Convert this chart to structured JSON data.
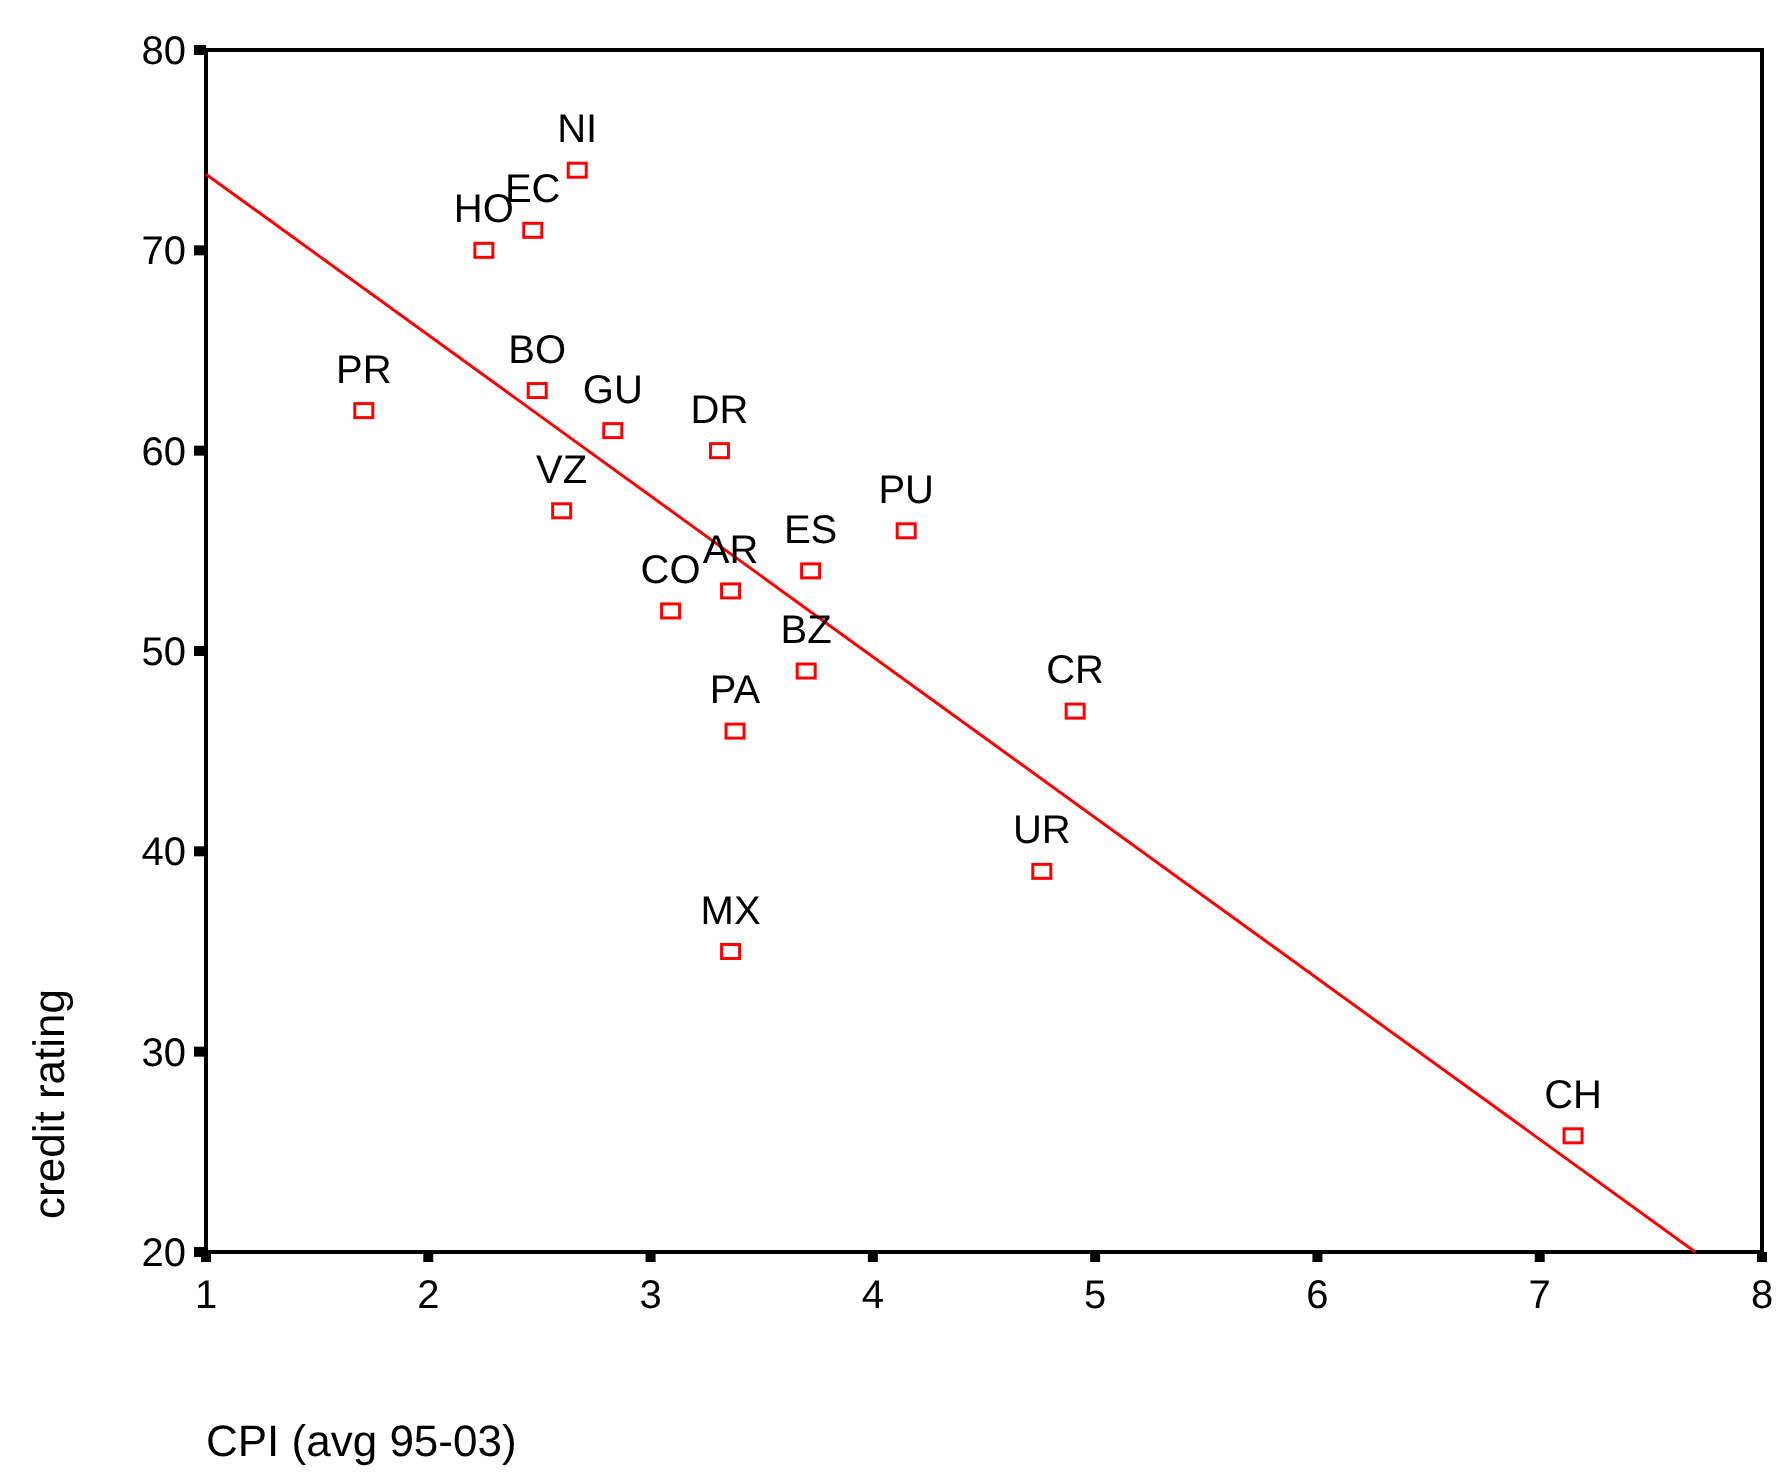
{
  "chart_data": {
    "type": "scatter",
    "xlabel": "CPI (avg 95-03)",
    "ylabel": "credit rating",
    "xlim": [
      1,
      8
    ],
    "ylim": [
      20,
      80
    ],
    "xticks": [
      1,
      2,
      3,
      4,
      5,
      6,
      7,
      8
    ],
    "yticks": [
      20,
      30,
      40,
      50,
      60,
      70,
      80
    ],
    "grid": false,
    "marker": "square",
    "series": [
      {
        "color": "#ff0000",
        "x": [
          2.67,
          2.47,
          2.25,
          1.71,
          2.49,
          2.83,
          3.31,
          2.6,
          4.15,
          3.72,
          3.36,
          3.09,
          3.7,
          3.38,
          4.91,
          4.76,
          3.36,
          7.15
        ],
        "values": [
          74,
          71,
          70,
          62,
          63,
          61,
          60,
          57,
          56,
          54,
          53,
          52,
          49,
          46,
          47,
          39,
          35,
          25.8
        ]
      },
      {
        "type": "line",
        "color": "#ff0000",
        "marker": "none",
        "line_style": "solid",
        "x": [
          1,
          7.7
        ],
        "values": [
          73.8,
          20
        ]
      }
    ],
    "annotations": [
      {
        "text": "NI",
        "x": 2.67,
        "y": 74
      },
      {
        "text": "EC",
        "x": 2.47,
        "y": 71
      },
      {
        "text": "HO",
        "x": 2.25,
        "y": 70
      },
      {
        "text": "PR",
        "x": 1.71,
        "y": 62
      },
      {
        "text": "BO",
        "x": 2.49,
        "y": 63
      },
      {
        "text": "GU",
        "x": 2.83,
        "y": 61
      },
      {
        "text": "DR",
        "x": 3.31,
        "y": 60
      },
      {
        "text": "VZ",
        "x": 2.6,
        "y": 57
      },
      {
        "text": "PU",
        "x": 4.15,
        "y": 56
      },
      {
        "text": "ES",
        "x": 3.72,
        "y": 54
      },
      {
        "text": "AR",
        "x": 3.36,
        "y": 53
      },
      {
        "text": "CO",
        "x": 3.09,
        "y": 52
      },
      {
        "text": "BZ",
        "x": 3.7,
        "y": 49
      },
      {
        "text": "PA",
        "x": 3.38,
        "y": 46
      },
      {
        "text": "CR",
        "x": 4.91,
        "y": 47
      },
      {
        "text": "UR",
        "x": 4.76,
        "y": 39
      },
      {
        "text": "MX",
        "x": 3.36,
        "y": 35
      },
      {
        "text": "CH",
        "x": 7.15,
        "y": 25.8
      }
    ]
  }
}
